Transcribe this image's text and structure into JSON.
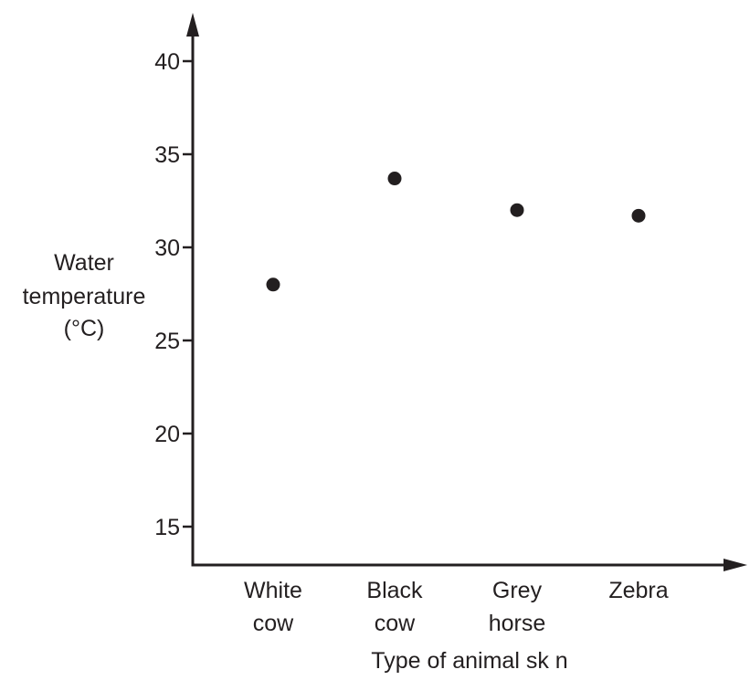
{
  "chart_data": {
    "type": "scatter",
    "title": "",
    "xlabel": "Type of animal sk n",
    "ylabel_lines": [
      "Water",
      "temperature",
      "(°C)"
    ],
    "categories": [
      {
        "lines": [
          "White",
          "cow"
        ]
      },
      {
        "lines": [
          "Black",
          "cow"
        ]
      },
      {
        "lines": [
          "Grey",
          "horse"
        ]
      },
      {
        "lines": [
          "Zebra"
        ]
      }
    ],
    "values": [
      28.0,
      33.7,
      32.0,
      31.7
    ],
    "yticks": [
      15,
      20,
      25,
      30,
      35,
      40
    ],
    "ylim": [
      13,
      41.5
    ],
    "grid": false,
    "colors": {
      "marker": "#231f20",
      "axis": "#231f20"
    }
  }
}
